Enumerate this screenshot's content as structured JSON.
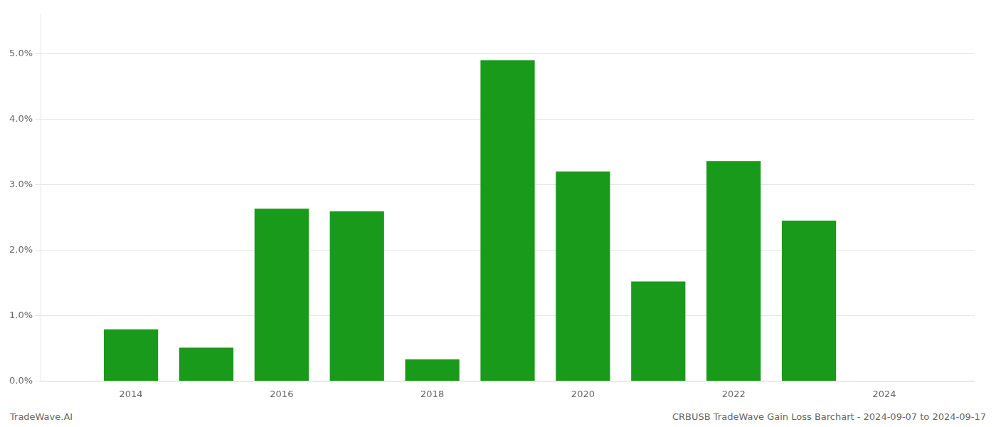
{
  "chart_data": {
    "type": "bar",
    "x": [
      2014,
      2015,
      2016,
      2017,
      2018,
      2019,
      2020,
      2021,
      2022,
      2023
    ],
    "values": [
      0.0079,
      0.0051,
      0.0263,
      0.0259,
      0.0033,
      0.049,
      0.032,
      0.0152,
      0.0336,
      0.0245
    ],
    "color": "#1a9a1a",
    "xlim": [
      2012.8,
      2025.2
    ],
    "xticks": [
      2014,
      2016,
      2018,
      2020,
      2022,
      2024
    ],
    "ylim": [
      0,
      0.056
    ],
    "yticks": [
      {
        "value": 0,
        "label": "0.0%"
      },
      {
        "value": 0.01,
        "label": "1.0%"
      },
      {
        "value": 0.02,
        "label": "2.0%"
      },
      {
        "value": 0.03,
        "label": "3.0%"
      },
      {
        "value": 0.04,
        "label": "4.0%"
      },
      {
        "value": 0.05,
        "label": "5.0%"
      }
    ],
    "grid": true,
    "annotations": [
      "TradeWave.AI",
      "CRBUSB TradeWave Gain Loss Barchart - 2024-09-07 to 2024-09-17"
    ]
  }
}
